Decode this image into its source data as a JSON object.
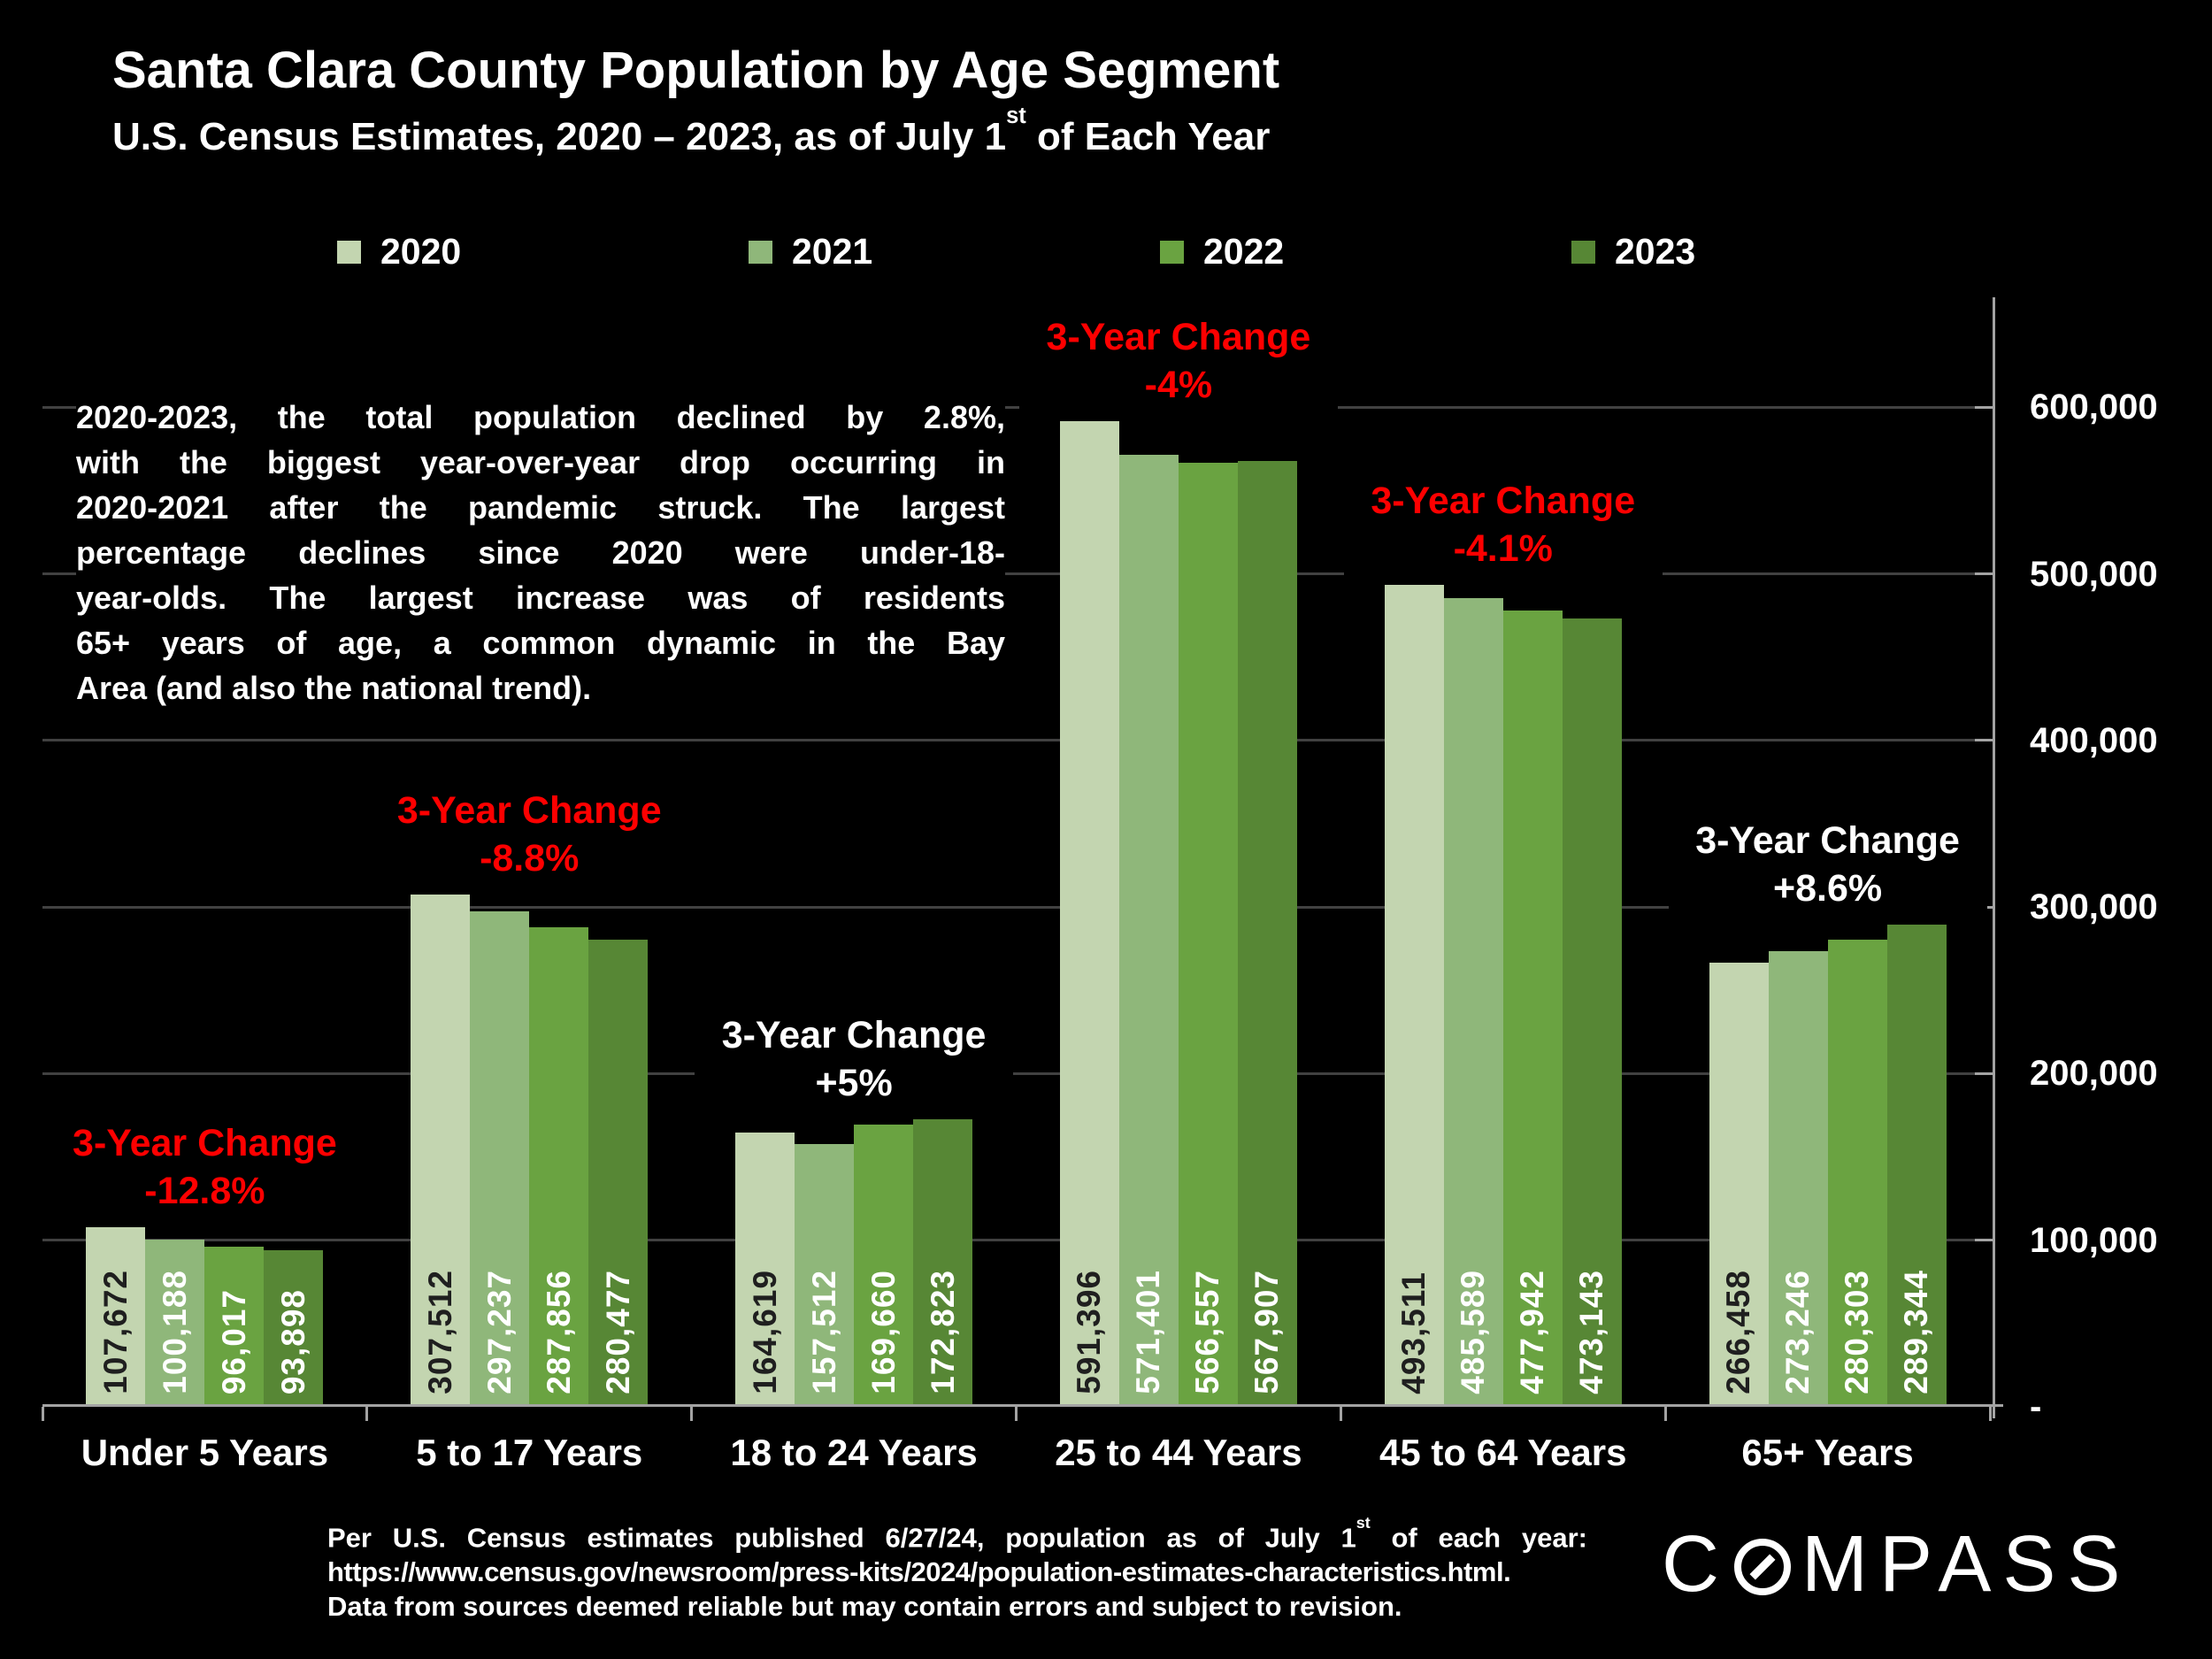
{
  "slide": {
    "title": "Santa Clara County Population by Age Segment",
    "subtitle_pre": "U.S. Census Estimates, 2020 – 2023, as of July 1",
    "subtitle_sup": "st",
    "subtitle_post": " of Each Year"
  },
  "legend": {
    "items": [
      {
        "label": "2020",
        "color": "#c3d5b0"
      },
      {
        "label": "2021",
        "color": "#8fb77a"
      },
      {
        "label": "2022",
        "color": "#6aa341"
      },
      {
        "label": "2023",
        "color": "#578735"
      }
    ]
  },
  "paragraph": {
    "lines": [
      "2020-2023, the total population declined by 2.8%,",
      "with the biggest year-over-year drop occurring in",
      "2020-2021 after the pandemic struck. The largest",
      "percentage declines since 2020 were under-18-",
      "year-olds. The largest increase was of residents",
      "65+ years of age, a common dynamic in the Bay",
      "Area (and also the national trend)."
    ]
  },
  "chart_data": {
    "type": "bar",
    "title": "Santa Clara County Population by Age Segment",
    "xlabel": "",
    "ylabel": "",
    "ylim": [
      0,
      650000
    ],
    "grid": true,
    "legend_position": "top",
    "categories": [
      "Under 5 Years",
      "5 to 17 Years",
      "18 to 24 Years",
      "25 to 44 Years",
      "45 to 64 Years",
      "65+ Years"
    ],
    "series": [
      {
        "name": "2020",
        "color": "#c3d5b0",
        "values": [
          107672,
          307512,
          164619,
          591396,
          493511,
          266458
        ]
      },
      {
        "name": "2021",
        "color": "#8fb77a",
        "values": [
          100188,
          297237,
          157512,
          571401,
          485589,
          273246
        ]
      },
      {
        "name": "2022",
        "color": "#6aa341",
        "values": [
          96017,
          287856,
          169660,
          566557,
          477942,
          280303
        ]
      },
      {
        "name": "2023",
        "color": "#578735",
        "values": [
          93898,
          280477,
          172823,
          567907,
          473143,
          289344
        ]
      }
    ],
    "value_label_dark": "#1f1f1f",
    "value_label_light": "#ffffff",
    "y_axis": {
      "zero_label": "-",
      "ticks": [
        {
          "label": "600,000",
          "value": 600000
        },
        {
          "label": "500,000",
          "value": 500000
        },
        {
          "label": "400,000",
          "value": 400000
        },
        {
          "label": "300,000",
          "value": 300000
        },
        {
          "label": "200,000",
          "value": 200000
        },
        {
          "label": "100,000",
          "value": 100000
        }
      ]
    },
    "annotations": [
      {
        "category": "Under 5 Years",
        "lines": [
          "3-Year Change",
          "-12.8%"
        ],
        "color": "#fe0000"
      },
      {
        "category": "5 to 17 Years",
        "lines": [
          "3-Year Change",
          "-8.8%"
        ],
        "color": "#fe0000"
      },
      {
        "category": "18 to 24 Years",
        "lines": [
          "3-Year Change",
          "+5%"
        ],
        "color": "#ffffff"
      },
      {
        "category": "25 to 44 Years",
        "lines": [
          "3-Year Change",
          "-4%"
        ],
        "color": "#fe0000"
      },
      {
        "category": "45 to 64 Years",
        "lines": [
          "3-Year Change",
          "-4.1%"
        ],
        "color": "#fe0000"
      },
      {
        "category": "65+ Years",
        "lines": [
          "3-Year Change",
          "+8.6%"
        ],
        "color": "#ffffff"
      }
    ]
  },
  "footer": {
    "line1_pre": "Per U.S. Census estimates published 6/27/24, population as of July 1",
    "line1_sup": "st",
    "line1_post": " of each year:",
    "line2": "https://www.census.gov/newsroom/press-kits/2024/population-estimates-characteristics.html.",
    "line3": "Data from sources deemed reliable but may contain errors and subject to revision."
  },
  "logo": {
    "name": "COMPASS",
    "text_c": "C",
    "text_rest": "MPASS"
  }
}
